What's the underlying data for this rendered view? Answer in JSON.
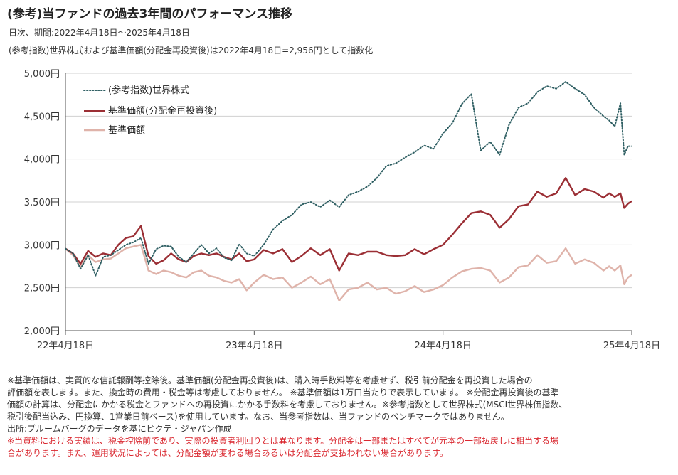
{
  "header": {
    "title": "(参考)当ファンドの過去3年間のパフォーマンス推移",
    "period": "日次、期間:2022年4月18日～2025年4月18日",
    "index_note": "(参考指数)世界株式および基準価額(分配金再投資後)は2022年4月18日=2,956円として指数化"
  },
  "chart_data": {
    "type": "line",
    "ylim": [
      2000,
      5000
    ],
    "y_ticks": [
      2000,
      2500,
      3000,
      3500,
      4000,
      4500,
      5000
    ],
    "y_tick_labels": [
      "2,000円",
      "2,500円",
      "3,000円",
      "3,500円",
      "4,000円",
      "4,500円",
      "5,000円"
    ],
    "x_ticks": [
      "22年4月18日",
      "23年4月18日",
      "24年4月18日",
      "25年4月18日"
    ],
    "x_tick_positions": [
      0,
      1,
      2,
      3
    ],
    "grid": "horizontal",
    "legend_position": "top-left",
    "series": [
      {
        "name": "(参考指数)世界株式",
        "color": "#2f5f63",
        "style": "dotted",
        "x": [
          0,
          0.04,
          0.08,
          0.12,
          0.16,
          0.2,
          0.24,
          0.28,
          0.32,
          0.36,
          0.4,
          0.44,
          0.48,
          0.52,
          0.56,
          0.6,
          0.64,
          0.68,
          0.72,
          0.76,
          0.8,
          0.84,
          0.88,
          0.92,
          0.96,
          1.0,
          1.05,
          1.1,
          1.15,
          1.2,
          1.25,
          1.3,
          1.35,
          1.4,
          1.45,
          1.5,
          1.55,
          1.6,
          1.65,
          1.7,
          1.75,
          1.8,
          1.85,
          1.9,
          1.95,
          2.0,
          2.05,
          2.1,
          2.15,
          2.2,
          2.25,
          2.3,
          2.35,
          2.4,
          2.45,
          2.5,
          2.55,
          2.6,
          2.65,
          2.7,
          2.75,
          2.8,
          2.85,
          2.88,
          2.91,
          2.94,
          2.96,
          2.98,
          3.0
        ],
        "y": [
          2956,
          2900,
          2720,
          2880,
          2640,
          2860,
          2880,
          2940,
          3000,
          3030,
          3080,
          2780,
          2950,
          2990,
          2980,
          2860,
          2800,
          2900,
          3000,
          2900,
          2960,
          2850,
          2820,
          3010,
          2900,
          2870,
          3000,
          3180,
          3280,
          3350,
          3470,
          3500,
          3440,
          3520,
          3440,
          3580,
          3620,
          3680,
          3780,
          3920,
          3950,
          4020,
          4080,
          4160,
          4120,
          4300,
          4420,
          4640,
          4760,
          4100,
          4200,
          4050,
          4400,
          4600,
          4650,
          4780,
          4850,
          4820,
          4900,
          4820,
          4750,
          4600,
          4500,
          4450,
          4380,
          4650,
          4050,
          4150,
          4150
        ]
      },
      {
        "name": "基準価額(分配金再投資後)",
        "color": "#9b2f35",
        "style": "solid",
        "x": [
          0,
          0.04,
          0.08,
          0.12,
          0.16,
          0.2,
          0.24,
          0.28,
          0.32,
          0.36,
          0.4,
          0.44,
          0.48,
          0.52,
          0.56,
          0.6,
          0.64,
          0.68,
          0.72,
          0.76,
          0.8,
          0.84,
          0.88,
          0.92,
          0.96,
          1.0,
          1.05,
          1.1,
          1.15,
          1.2,
          1.25,
          1.3,
          1.35,
          1.4,
          1.45,
          1.5,
          1.55,
          1.6,
          1.65,
          1.7,
          1.75,
          1.8,
          1.85,
          1.9,
          1.95,
          2.0,
          2.05,
          2.1,
          2.15,
          2.2,
          2.25,
          2.3,
          2.35,
          2.4,
          2.45,
          2.5,
          2.55,
          2.6,
          2.65,
          2.7,
          2.75,
          2.8,
          2.85,
          2.88,
          2.91,
          2.94,
          2.96,
          2.98,
          3.0
        ],
        "y": [
          2956,
          2900,
          2780,
          2930,
          2860,
          2900,
          2880,
          3000,
          3080,
          3100,
          3220,
          2870,
          2780,
          2820,
          2900,
          2830,
          2800,
          2870,
          2900,
          2880,
          2900,
          2860,
          2830,
          2900,
          2810,
          2830,
          2940,
          2900,
          2950,
          2800,
          2870,
          2960,
          2880,
          2950,
          2700,
          2900,
          2880,
          2920,
          2920,
          2880,
          2870,
          2880,
          2950,
          2890,
          2950,
          3000,
          3120,
          3250,
          3370,
          3390,
          3350,
          3200,
          3300,
          3450,
          3470,
          3620,
          3560,
          3600,
          3780,
          3580,
          3650,
          3620,
          3550,
          3600,
          3560,
          3600,
          3430,
          3480,
          3510
        ]
      },
      {
        "name": "基準価額",
        "color": "#dfb3aa",
        "style": "solid",
        "x": [
          0,
          0.04,
          0.08,
          0.12,
          0.16,
          0.2,
          0.24,
          0.28,
          0.32,
          0.36,
          0.4,
          0.44,
          0.48,
          0.52,
          0.56,
          0.6,
          0.64,
          0.68,
          0.72,
          0.76,
          0.8,
          0.84,
          0.88,
          0.92,
          0.96,
          1.0,
          1.05,
          1.1,
          1.15,
          1.2,
          1.25,
          1.3,
          1.35,
          1.4,
          1.45,
          1.5,
          1.55,
          1.6,
          1.65,
          1.7,
          1.75,
          1.8,
          1.85,
          1.9,
          1.95,
          2.0,
          2.05,
          2.1,
          2.15,
          2.2,
          2.25,
          2.3,
          2.35,
          2.4,
          2.45,
          2.5,
          2.55,
          2.6,
          2.65,
          2.7,
          2.75,
          2.8,
          2.85,
          2.88,
          2.91,
          2.94,
          2.96,
          2.98,
          3.0
        ],
        "y": [
          2956,
          2880,
          2740,
          2880,
          2800,
          2830,
          2840,
          2900,
          2960,
          2980,
          3000,
          2700,
          2660,
          2700,
          2680,
          2640,
          2620,
          2680,
          2700,
          2640,
          2620,
          2580,
          2560,
          2600,
          2470,
          2560,
          2650,
          2600,
          2620,
          2500,
          2560,
          2630,
          2540,
          2600,
          2350,
          2480,
          2500,
          2560,
          2480,
          2500,
          2430,
          2460,
          2520,
          2450,
          2480,
          2530,
          2620,
          2690,
          2720,
          2730,
          2700,
          2560,
          2620,
          2740,
          2760,
          2880,
          2790,
          2810,
          2960,
          2780,
          2830,
          2790,
          2700,
          2750,
          2700,
          2760,
          2540,
          2620,
          2650
        ]
      }
    ]
  },
  "notes": {
    "line1": "※基準価額は、実質的な信託報酬等控除後。基準価額(分配金再投資後)は、購入時手数料等を考慮せず、税引前分配金を再投資した場合の",
    "line2": "評価額を表します。また、換金時の費用・税金等は考慮しておりません。 ※基準価額は1万口当たりで表示しています。 ※分配金再投資後の基準",
    "line3": "価額の計算は、分配金にかかる税金とファンドへの再投資にかかる手数料を考慮しておりません。※参考指数として世界株式(MSCI世界株価指数、",
    "line4": "税引後配当込み、円換算、1営業日前ベース)を使用しています。なお、当参考指数は、当ファンドのベンチマークではありません。",
    "source": "出所:ブルームバーグのデータを基にピクテ・ジャパン作成",
    "warning1": "※当資料における実績は、税金控除前であり、実際の投資者利回りとは異なります。分配金は一部またはすべてが元本の一部払戻しに相当する場",
    "warning2": "合があります。また、運用状況によっては、分配金額が変わる場合あるいは分配金が支払われない場合があります。"
  }
}
